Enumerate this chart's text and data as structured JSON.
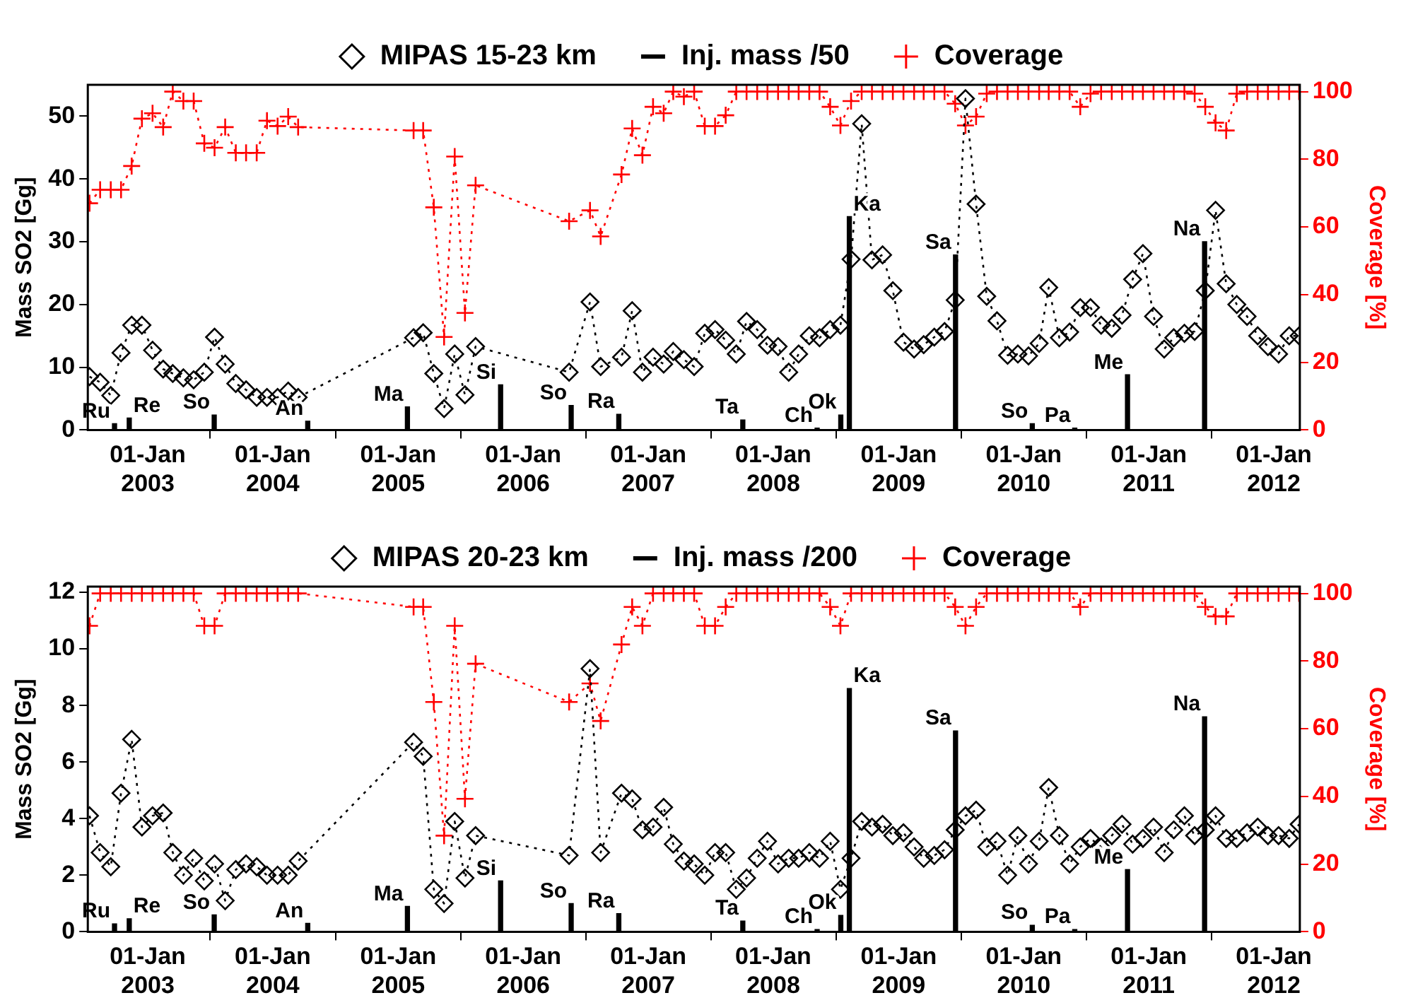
{
  "chart_data": [
    {
      "type": "line",
      "ylabel": "Mass SO2 [Gg]",
      "y2label": "Coverage [%]",
      "legend": "top",
      "xlim": [
        "2002-07-10",
        "2012-03-17"
      ],
      "xticks": [
        {
          "value": "2003-01-01",
          "label": "01-Jan 2003"
        },
        {
          "value": "2004-01-01",
          "label": "01-Jan 2004"
        },
        {
          "value": "2005-01-01",
          "label": "01-Jan 2005"
        },
        {
          "value": "2006-01-01",
          "label": "01-Jan 2006"
        },
        {
          "value": "2007-01-01",
          "label": "01-Jan 2007"
        },
        {
          "value": "2008-01-01",
          "label": "01-Jan 2008"
        },
        {
          "value": "2009-01-01",
          "label": "01-Jan 2009"
        },
        {
          "value": "2010-01-01",
          "label": "01-Jan 2010"
        },
        {
          "value": "2011-01-01",
          "label": "01-Jan 2011"
        },
        {
          "value": "2012-01-01",
          "label": "01-Jan 2012"
        }
      ],
      "ylim": [
        0,
        55
      ],
      "yticks": [
        0,
        10,
        20,
        30,
        40,
        50
      ],
      "y2lim": [
        0,
        102
      ],
      "y2ticks": [
        0,
        20,
        40,
        60,
        80,
        100
      ],
      "x": [
        "2002-07-15",
        "2002-08-15",
        "2002-09-15",
        "2002-10-15",
        "2002-11-15",
        "2002-12-15",
        "2003-01-15",
        "2003-02-15",
        "2003-03-15",
        "2003-04-15",
        "2003-05-15",
        "2003-06-15",
        "2003-07-15",
        "2003-08-15",
        "2003-09-15",
        "2003-10-15",
        "2003-11-15",
        "2003-12-15",
        "2004-01-15",
        "2004-02-15",
        "2004-03-15",
        "2005-02-15",
        "2005-03-15",
        "2005-04-15",
        "2005-05-15",
        "2005-06-15",
        "2005-07-15",
        "2005-08-15",
        "2006-05-15",
        "2006-07-15",
        "2006-08-15",
        "2006-10-15",
        "2006-11-15",
        "2006-12-15",
        "2007-01-15",
        "2007-02-15",
        "2007-03-15",
        "2007-04-15",
        "2007-05-15",
        "2007-06-15",
        "2007-07-15",
        "2007-08-15",
        "2007-09-15",
        "2007-10-15",
        "2007-11-15",
        "2007-12-15",
        "2008-01-15",
        "2008-02-15",
        "2008-03-15",
        "2008-04-15",
        "2008-05-15",
        "2008-06-15",
        "2008-07-15",
        "2008-08-15",
        "2008-09-15",
        "2008-10-15",
        "2008-11-15",
        "2008-12-15",
        "2009-01-15",
        "2009-02-15",
        "2009-03-15",
        "2009-04-15",
        "2009-05-15",
        "2009-06-15",
        "2009-07-15",
        "2009-08-15",
        "2009-09-15",
        "2009-10-15",
        "2009-11-15",
        "2009-12-15",
        "2010-01-15",
        "2010-02-15",
        "2010-03-15",
        "2010-04-15",
        "2010-05-15",
        "2010-06-15",
        "2010-07-15",
        "2010-08-15",
        "2010-09-15",
        "2010-10-15",
        "2010-11-15",
        "2010-12-15",
        "2011-01-15",
        "2011-02-15",
        "2011-03-15",
        "2011-04-15",
        "2011-05-15",
        "2011-06-15",
        "2011-07-15",
        "2011-08-15",
        "2011-09-15",
        "2011-10-15",
        "2011-11-15",
        "2011-12-15",
        "2012-01-15",
        "2012-02-15",
        "2012-03-15"
      ],
      "series": [
        {
          "name": "MIPAS 15-23 km",
          "color": "#000000",
          "marker": "diamond",
          "line_style": "dotted",
          "values": [
            8.5,
            7.6,
            5.5,
            12.3,
            16.7,
            16.7,
            12.7,
            9.7,
            9.0,
            8.3,
            8.0,
            9.2,
            14.8,
            10.5,
            7.4,
            6.4,
            5.2,
            5.2,
            5.2,
            6.2,
            5.2,
            14.7,
            15.5,
            9.0,
            3.4,
            12.1,
            5.6,
            13.3,
            9.2,
            20.4,
            10.1,
            11.6,
            19.0,
            9.2,
            11.6,
            10.5,
            12.5,
            11.2,
            10.1,
            15.4,
            16.0,
            14.3,
            12.1,
            17.3,
            16.0,
            13.5,
            13.3,
            9.2,
            12.1,
            15.0,
            14.7,
            16.0,
            16.7,
            27.2,
            48.8,
            27.1,
            27.9,
            22.2,
            14.0,
            12.9,
            13.6,
            14.8,
            15.7,
            20.7,
            52.8,
            36.0,
            21.3,
            17.4,
            11.9,
            12.1,
            11.8,
            13.8,
            22.7,
            14.7,
            15.6,
            19.5,
            19.5,
            16.7,
            16.2,
            18.3,
            24.0,
            28.1,
            18.1,
            12.9,
            14.7,
            15.4,
            15.7,
            22.2,
            35.0,
            23.3,
            20.0,
            18.1,
            15.0,
            13.3,
            12.1,
            15.0,
            15.0
          ]
        },
        {
          "name": "Inj. mass /50",
          "type": "bar",
          "color": "#000000",
          "x": [
            "2002-09-26",
            "2002-11-08",
            "2003-07-14",
            "2004-04-12",
            "2005-01-28",
            "2005-10-27",
            "2006-05-21",
            "2006-10-07",
            "2007-10-04",
            "2008-05-08",
            "2008-07-16",
            "2008-08-10",
            "2009-06-16",
            "2010-01-26",
            "2010-05-30",
            "2010-10-31",
            "2011-06-13"
          ],
          "values": [
            1.0,
            1.9,
            2.4,
            1.4,
            3.7,
            7.2,
            3.9,
            2.5,
            1.6,
            0.3,
            2.4,
            34.0,
            27.9,
            1.0,
            0.3,
            8.8,
            30.0
          ],
          "value_labels": [
            "Ru",
            "Re",
            "So",
            "An",
            "Ma",
            "Si",
            "So",
            "Ra",
            "Ta",
            "Ch",
            "Ok",
            "Ka",
            "Sa",
            "So",
            "Pa",
            "Me",
            "Na"
          ]
        },
        {
          "name": "Coverage",
          "axis": "y2",
          "color": "#ff0000",
          "marker": "cross",
          "line_style": "dotted",
          "values": [
            67,
            71,
            71,
            71,
            78,
            92,
            93.6,
            89.5,
            100,
            97.2,
            97.2,
            84.7,
            83.4,
            89.5,
            81.9,
            81.9,
            81.9,
            91.4,
            89.8,
            92.6,
            89.5,
            88.5,
            88.5,
            65.8,
            27.5,
            80.8,
            34.6,
            72.3,
            61.7,
            64.9,
            57.2,
            75.5,
            89.1,
            81.2,
            95.5,
            93.6,
            100,
            98.5,
            100,
            89.8,
            89.8,
            93.0,
            100,
            100,
            100,
            100,
            100,
            100,
            100,
            100,
            100,
            95.5,
            90.0,
            97.2,
            100,
            100,
            100,
            100,
            100,
            100,
            100,
            100,
            100,
            96.4,
            90.0,
            92.6,
            99.4,
            100,
            100,
            100,
            100,
            100,
            100,
            100,
            100,
            95.5,
            99.4,
            100,
            100,
            100,
            100,
            100,
            100,
            100,
            100,
            100,
            99.4,
            95.5,
            90.8,
            88.5,
            99.4,
            100,
            100,
            100,
            100,
            100,
            100
          ]
        }
      ]
    },
    {
      "type": "line",
      "ylabel": "Mass SO2 [Gg]",
      "y2label": "Coverage [%]",
      "legend": "top",
      "xlim": [
        "2002-07-10",
        "2012-03-17"
      ],
      "xticks": [
        {
          "value": "2003-01-01",
          "label": "01-Jan 2003"
        },
        {
          "value": "2004-01-01",
          "label": "01-Jan 2004"
        },
        {
          "value": "2005-01-01",
          "label": "01-Jan 2005"
        },
        {
          "value": "2006-01-01",
          "label": "01-Jan 2006"
        },
        {
          "value": "2007-01-01",
          "label": "01-Jan 2007"
        },
        {
          "value": "2008-01-01",
          "label": "01-Jan 2008"
        },
        {
          "value": "2009-01-01",
          "label": "01-Jan 2009"
        },
        {
          "value": "2010-01-01",
          "label": "01-Jan 2010"
        },
        {
          "value": "2011-01-01",
          "label": "01-Jan 2011"
        },
        {
          "value": "2012-01-01",
          "label": "01-Jan 2012"
        }
      ],
      "ylim": [
        0,
        12.2
      ],
      "yticks": [
        0,
        2,
        4,
        6,
        8,
        10,
        12
      ],
      "y2lim": [
        0,
        102
      ],
      "y2ticks": [
        0,
        20,
        40,
        60,
        80,
        100
      ],
      "x": [
        "2002-07-15",
        "2002-08-15",
        "2002-09-15",
        "2002-10-15",
        "2002-11-15",
        "2002-12-15",
        "2003-01-15",
        "2003-02-15",
        "2003-03-15",
        "2003-04-15",
        "2003-05-15",
        "2003-06-15",
        "2003-07-15",
        "2003-08-15",
        "2003-09-15",
        "2003-10-15",
        "2003-11-15",
        "2003-12-15",
        "2004-01-15",
        "2004-02-15",
        "2004-03-15",
        "2005-02-15",
        "2005-03-15",
        "2005-04-15",
        "2005-05-15",
        "2005-06-15",
        "2005-07-15",
        "2005-08-15",
        "2006-05-15",
        "2006-07-15",
        "2006-08-15",
        "2006-10-15",
        "2006-11-15",
        "2006-12-15",
        "2007-01-15",
        "2007-02-15",
        "2007-03-15",
        "2007-04-15",
        "2007-05-15",
        "2007-06-15",
        "2007-07-15",
        "2007-08-15",
        "2007-09-15",
        "2007-10-15",
        "2007-11-15",
        "2007-12-15",
        "2008-01-15",
        "2008-02-15",
        "2008-03-15",
        "2008-04-15",
        "2008-05-15",
        "2008-06-15",
        "2008-07-15",
        "2008-08-15",
        "2008-09-15",
        "2008-10-15",
        "2008-11-15",
        "2008-12-15",
        "2009-01-15",
        "2009-02-15",
        "2009-03-15",
        "2009-04-15",
        "2009-05-15",
        "2009-06-15",
        "2009-07-15",
        "2009-08-15",
        "2009-09-15",
        "2009-10-15",
        "2009-11-15",
        "2009-12-15",
        "2010-01-15",
        "2010-02-15",
        "2010-03-15",
        "2010-04-15",
        "2010-05-15",
        "2010-06-15",
        "2010-07-15",
        "2010-08-15",
        "2010-09-15",
        "2010-10-15",
        "2010-11-15",
        "2010-12-15",
        "2011-01-15",
        "2011-02-15",
        "2011-03-15",
        "2011-04-15",
        "2011-05-15",
        "2011-06-15",
        "2011-07-15",
        "2011-08-15",
        "2011-09-15",
        "2011-10-15",
        "2011-11-15",
        "2011-12-15",
        "2012-01-15",
        "2012-02-15",
        "2012-03-15"
      ],
      "series": [
        {
          "name": "MIPAS 20-23 km",
          "color": "#000000",
          "marker": "diamond",
          "line_style": "dotted",
          "values": [
            4.1,
            2.8,
            2.3,
            4.9,
            6.8,
            3.7,
            4.1,
            4.2,
            2.8,
            2.0,
            2.6,
            1.8,
            2.4,
            1.1,
            2.2,
            2.4,
            2.3,
            2.0,
            2.0,
            2.0,
            2.5,
            6.7,
            6.2,
            1.5,
            1.0,
            3.9,
            1.9,
            3.4,
            2.7,
            9.3,
            2.8,
            4.9,
            4.7,
            3.6,
            3.7,
            4.4,
            3.1,
            2.5,
            2.4,
            2.0,
            2.8,
            2.8,
            1.5,
            1.9,
            2.6,
            3.2,
            2.4,
            2.6,
            2.6,
            2.8,
            2.6,
            3.2,
            1.5,
            2.6,
            3.9,
            3.7,
            3.8,
            3.4,
            3.5,
            3.0,
            2.6,
            2.7,
            2.9,
            3.6,
            4.1,
            4.3,
            3.0,
            3.2,
            2.0,
            3.4,
            2.4,
            3.2,
            5.1,
            3.4,
            2.4,
            3.0,
            3.3,
            3.0,
            3.4,
            3.8,
            3.1,
            3.3,
            3.7,
            2.8,
            3.6,
            4.1,
            3.4,
            3.6,
            4.1,
            3.3,
            3.3,
            3.5,
            3.7,
            3.4,
            3.4,
            3.3,
            3.8
          ]
        },
        {
          "name": "Inj. mass /200",
          "type": "bar",
          "color": "#000000",
          "x": [
            "2002-09-26",
            "2002-11-08",
            "2003-07-14",
            "2004-04-12",
            "2005-01-28",
            "2005-10-27",
            "2006-05-21",
            "2006-10-07",
            "2007-10-04",
            "2008-05-08",
            "2008-07-16",
            "2008-08-10",
            "2009-06-16",
            "2010-01-26",
            "2010-05-30",
            "2010-10-31",
            "2011-06-13"
          ],
          "values": [
            0.28,
            0.46,
            0.6,
            0.3,
            0.9,
            1.8,
            1.0,
            0.64,
            0.38,
            0.08,
            0.58,
            8.6,
            7.1,
            0.23,
            0.08,
            2.2,
            7.6
          ],
          "value_labels": [
            "Ru",
            "Re",
            "So",
            "An",
            "Ma",
            "Si",
            "So",
            "Ra",
            "Ta",
            "Ch",
            "Ok",
            "Ka",
            "Sa",
            "So",
            "Pa",
            "Me",
            "Na"
          ]
        },
        {
          "name": "Coverage",
          "axis": "y2",
          "color": "#ff0000",
          "marker": "cross",
          "line_style": "dotted",
          "values": [
            90.4,
            100,
            100,
            100,
            100,
            100,
            100,
            100,
            100,
            100,
            100,
            90.4,
            90.4,
            100,
            100,
            100,
            100,
            100,
            100,
            100,
            100,
            96.0,
            96.0,
            67.9,
            28.4,
            90.4,
            39.3,
            79.2,
            67.9,
            73.4,
            62.3,
            84.9,
            96.0,
            90.4,
            100,
            100,
            100,
            100,
            100,
            90.4,
            90.4,
            96.0,
            100,
            100,
            100,
            100,
            100,
            100,
            100,
            100,
            100,
            96.0,
            90.4,
            100,
            100,
            100,
            100,
            100,
            100,
            100,
            100,
            100,
            100,
            96.0,
            90.4,
            96.0,
            100,
            100,
            100,
            100,
            100,
            100,
            100,
            100,
            100,
            96.0,
            100,
            100,
            100,
            100,
            100,
            100,
            100,
            100,
            100,
            100,
            100,
            96.0,
            93.2,
            93.2,
            100,
            100,
            100,
            100,
            100,
            100,
            100
          ]
        }
      ]
    }
  ]
}
